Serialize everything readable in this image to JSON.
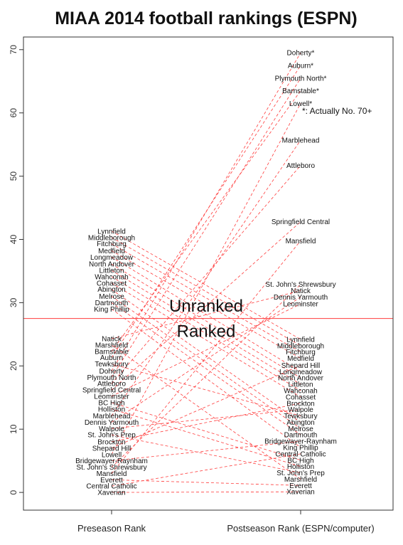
{
  "chart_data": {
    "type": "line",
    "title": "MIAA 2014 football rankings (ESPN)",
    "xlabel": "",
    "ylabel": "",
    "categories": [
      "Preseason Rank",
      "Postseason Rank (ESPN/computer)"
    ],
    "ylim": [
      -2.8,
      72
    ],
    "yticks": [
      0,
      10,
      20,
      30,
      40,
      50,
      60,
      70
    ],
    "grid": false,
    "threshold": 27.5,
    "annotations": [
      {
        "text": "Unranked",
        "x": 0.5,
        "y": 29.5
      },
      {
        "text": "Ranked",
        "x": 0.5,
        "y": 25.5
      },
      {
        "text": "*: Actually No. 70+",
        "x": 1.0,
        "y": 60.3
      }
    ],
    "pre": [
      {
        "label": "Lynnfield",
        "y": 41.3
      },
      {
        "label": "Middleborough",
        "y": 40.3
      },
      {
        "label": "Fitchburg",
        "y": 39.3
      },
      {
        "label": "Medfield",
        "y": 38.2
      },
      {
        "label": "Longmeadow",
        "y": 37.2
      },
      {
        "label": "North Andover",
        "y": 36.1
      },
      {
        "label": "Littleton",
        "y": 35.1
      },
      {
        "label": "Wahconah",
        "y": 34.1
      },
      {
        "label": "Cohasset",
        "y": 33.1
      },
      {
        "label": "Abington",
        "y": 32.1
      },
      {
        "label": "Melrose",
        "y": 31.0
      },
      {
        "label": "Dartmouth",
        "y": 30.0
      },
      {
        "label": "King Phillip",
        "y": 29.0
      },
      {
        "label": "Natick",
        "y": 24.3
      },
      {
        "label": "Marshfield",
        "y": 23.3
      },
      {
        "label": "Barnstable",
        "y": 22.3
      },
      {
        "label": "Auburn",
        "y": 21.3
      },
      {
        "label": "Tewksbury",
        "y": 20.3
      },
      {
        "label": "Doherty",
        "y": 19.2
      },
      {
        "label": "Plymouth North",
        "y": 18.2
      },
      {
        "label": "Attleboro",
        "y": 17.2
      },
      {
        "label": "Springfield Central",
        "y": 16.2
      },
      {
        "label": "Leominster",
        "y": 15.2
      },
      {
        "label": "BC High",
        "y": 14.2
      },
      {
        "label": "Holliston",
        "y": 13.2
      },
      {
        "label": "Marblehead",
        "y": 12.1
      },
      {
        "label": "Dennis Yarmouth",
        "y": 11.1
      },
      {
        "label": "Walpole",
        "y": 10.1
      },
      {
        "label": "St. John's Prep",
        "y": 9.1
      },
      {
        "label": "Brockton",
        "y": 8.0
      },
      {
        "label": "Shepard Hill",
        "y": 7.0
      },
      {
        "label": "Lowell",
        "y": 6.0
      },
      {
        "label": "Bridgewayer-Raynham",
        "y": 5.0
      },
      {
        "label": "St. John's Shrewsbury",
        "y": 4.0
      },
      {
        "label": "Mansfield",
        "y": 3.0
      },
      {
        "label": "Everett",
        "y": 2.0
      },
      {
        "label": "Central Catholic",
        "y": 1.0
      },
      {
        "label": "Xaverian",
        "y": 0.0
      }
    ],
    "post": [
      {
        "label": "Doherty*",
        "y": 69.5
      },
      {
        "label": "Auburn*",
        "y": 67.5
      },
      {
        "label": "Plymouth North*",
        "y": 65.5
      },
      {
        "label": "Barnstable*",
        "y": 63.5
      },
      {
        "label": "Lowell*",
        "y": 61.5
      },
      {
        "label": "Marblehead",
        "y": 55.7
      },
      {
        "label": "Attleboro",
        "y": 51.7
      },
      {
        "label": "Springfield Central",
        "y": 42.8
      },
      {
        "label": "Mansfield",
        "y": 39.8
      },
      {
        "label": "St. John's Shrewsbury",
        "y": 32.9
      },
      {
        "label": "Natick",
        "y": 31.9
      },
      {
        "label": "Dennis Yarmouth",
        "y": 30.9
      },
      {
        "label": "Leominster",
        "y": 29.8
      },
      {
        "label": "Lynnfield",
        "y": 24.2
      },
      {
        "label": "Middleborough",
        "y": 23.2
      },
      {
        "label": "Fitchburg",
        "y": 22.2
      },
      {
        "label": "Medfield",
        "y": 21.2
      },
      {
        "label": "Shepard Hill",
        "y": 20.1
      },
      {
        "label": "Longmeadow",
        "y": 19.1
      },
      {
        "label": "North Andover",
        "y": 18.1
      },
      {
        "label": "Littleton",
        "y": 17.1
      },
      {
        "label": "Wahconah",
        "y": 16.1
      },
      {
        "label": "Cohasset",
        "y": 15.1
      },
      {
        "label": "Brockton",
        "y": 14.1
      },
      {
        "label": "Walpole",
        "y": 13.1
      },
      {
        "label": "Tewksbury",
        "y": 12.1
      },
      {
        "label": "Abington",
        "y": 11.1
      },
      {
        "label": "Melrose",
        "y": 10.1
      },
      {
        "label": "Dartmouth",
        "y": 9.1
      },
      {
        "label": "Bridgewayer-Raynham",
        "y": 8.1
      },
      {
        "label": "King Phillip",
        "y": 7.1
      },
      {
        "label": "Central Catholic",
        "y": 6.1
      },
      {
        "label": "BC High",
        "y": 5.1
      },
      {
        "label": "Holliston",
        "y": 4.1
      },
      {
        "label": "St. John's Prep",
        "y": 3.1
      },
      {
        "label": "Marshfield",
        "y": 2.1
      },
      {
        "label": "Everett",
        "y": 1.1
      },
      {
        "label": "Xaverian",
        "y": 0.1
      }
    ]
  },
  "colors": {
    "lines": "#ff3b3b",
    "threshold": "#ff3b3b",
    "axis": "#333333"
  }
}
